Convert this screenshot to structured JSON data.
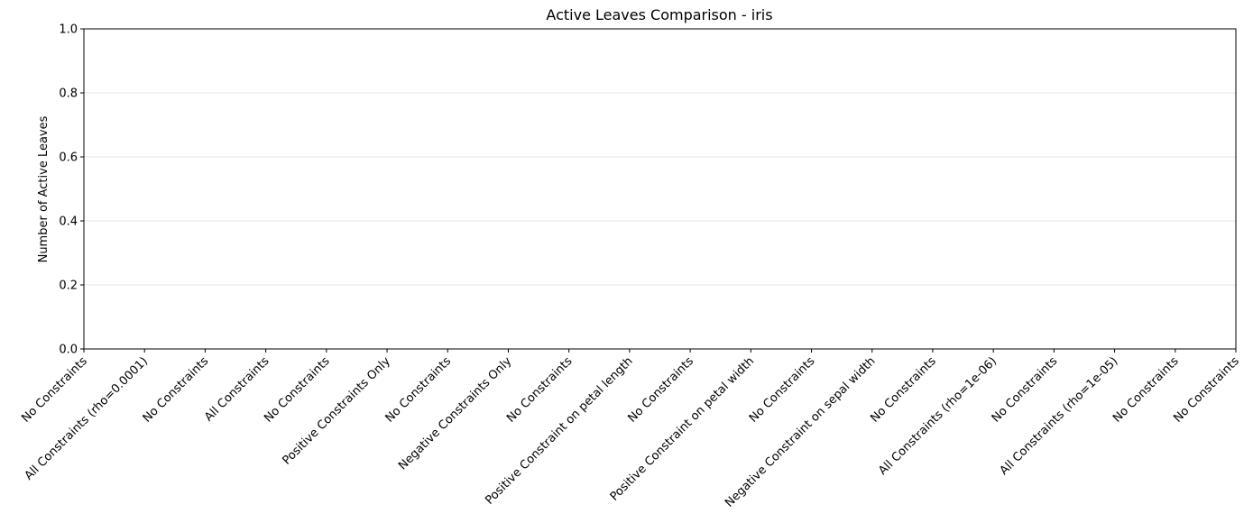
{
  "chart_data": {
    "type": "bar",
    "title": "Active Leaves Comparison - iris",
    "ylabel": "Number of Active Leaves",
    "categories": [
      "No Constraints",
      "All Constraints (rho=0.0001)",
      "No Constraints",
      "All Constraints",
      "No Constraints",
      "Positive Constraints Only",
      "No Constraints",
      "Negative Constraints Only",
      "No Constraints",
      "Positive Constraint on petal length",
      "No Constraints",
      "Positive Constraint on petal width",
      "No Constraints",
      "Negative Constraint on sepal width",
      "No Constraints",
      "All Constraints (rho=1e-06)",
      "No Constraints",
      "All Constraints (rho=1e-05)",
      "No Constraints",
      "No Constraints"
    ],
    "values": [
      0,
      0,
      0,
      0,
      0,
      0,
      0,
      0,
      0,
      0,
      0,
      0,
      0,
      0,
      0,
      0,
      0,
      0,
      0,
      0
    ],
    "ylim": [
      0,
      1
    ],
    "yticks": [
      {
        "value": 0,
        "label": "0.0"
      },
      {
        "value": 0.2,
        "label": "0.2"
      },
      {
        "value": 0.4,
        "label": "0.4"
      },
      {
        "value": 0.6,
        "label": "0.6"
      },
      {
        "value": 0.8,
        "label": "0.8"
      },
      {
        "value": 1,
        "label": "1.0"
      }
    ],
    "grid": true
  }
}
